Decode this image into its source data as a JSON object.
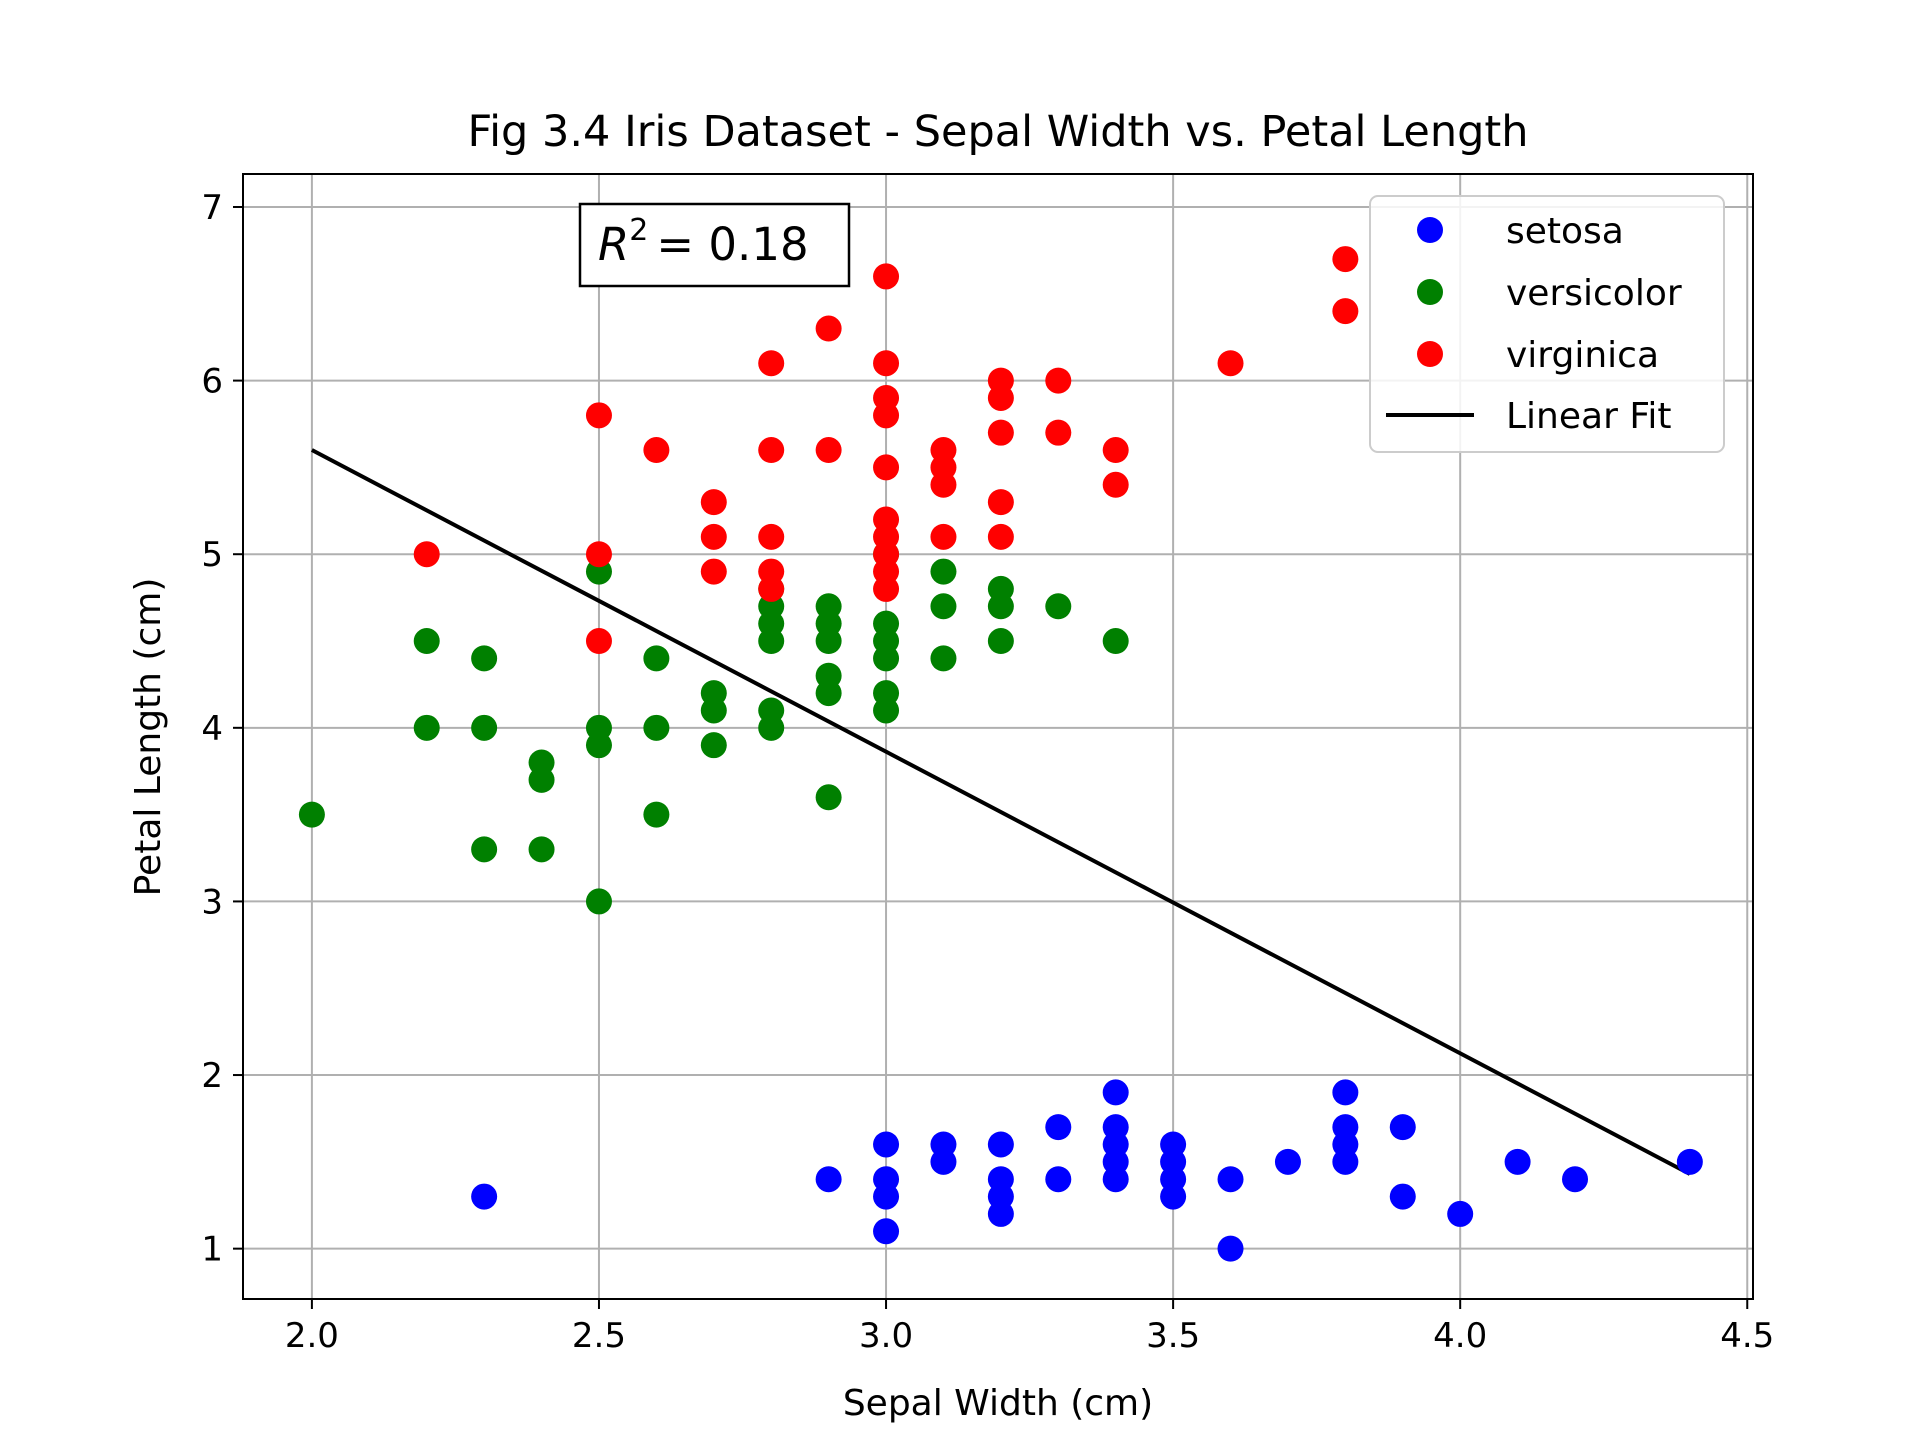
{
  "colors": {
    "setosa": "#0000ff",
    "versicolor": "#008000",
    "virginica": "#ff0000",
    "fit": "#000000",
    "grid": "#b0b0b0",
    "axes": "#000000"
  },
  "chart_data": {
    "type": "scatter",
    "title": "Fig 3.4 Iris Dataset - Sepal Width vs. Petal Length",
    "xlabel": "Sepal Width (cm)",
    "ylabel": "Petal Length (cm)",
    "xlim": [
      1.88,
      4.51
    ],
    "ylim": [
      0.71,
      7.19
    ],
    "xticks": [
      2.0,
      2.5,
      3.0,
      3.5,
      4.0,
      4.5
    ],
    "xtick_labels": [
      "2.0",
      "2.5",
      "3.0",
      "3.5",
      "4.0",
      "4.5"
    ],
    "yticks": [
      1,
      2,
      3,
      4,
      5,
      6,
      7
    ],
    "ytick_labels": [
      "1",
      "2",
      "3",
      "4",
      "5",
      "6",
      "7"
    ],
    "grid": true,
    "legend_position": "top-right",
    "annotation": {
      "lhs": "R",
      "exp": "2",
      "rhs": "= 0.18"
    },
    "series": [
      {
        "name": "setosa",
        "points": [
          [
            2.3,
            1.3
          ],
          [
            2.9,
            1.4
          ],
          [
            3.0,
            1.4
          ],
          [
            3.0,
            1.1
          ],
          [
            3.0,
            1.6
          ],
          [
            3.0,
            1.3
          ],
          [
            3.1,
            1.5
          ],
          [
            3.1,
            1.6
          ],
          [
            3.2,
            1.3
          ],
          [
            3.2,
            1.2
          ],
          [
            3.2,
            1.6
          ],
          [
            3.2,
            1.4
          ],
          [
            3.3,
            1.4
          ],
          [
            3.3,
            1.7
          ],
          [
            3.4,
            1.4
          ],
          [
            3.4,
            1.5
          ],
          [
            3.4,
            1.6
          ],
          [
            3.4,
            1.7
          ],
          [
            3.4,
            1.9
          ],
          [
            3.5,
            1.3
          ],
          [
            3.5,
            1.4
          ],
          [
            3.5,
            1.5
          ],
          [
            3.5,
            1.6
          ],
          [
            3.6,
            1.0
          ],
          [
            3.6,
            1.4
          ],
          [
            3.7,
            1.5
          ],
          [
            3.8,
            1.5
          ],
          [
            3.8,
            1.6
          ],
          [
            3.8,
            1.7
          ],
          [
            3.8,
            1.9
          ],
          [
            3.9,
            1.3
          ],
          [
            3.9,
            1.7
          ],
          [
            4.0,
            1.2
          ],
          [
            4.1,
            1.5
          ],
          [
            4.2,
            1.4
          ],
          [
            4.4,
            1.5
          ]
        ]
      },
      {
        "name": "versicolor",
        "points": [
          [
            2.0,
            3.5
          ],
          [
            2.2,
            4.0
          ],
          [
            2.2,
            4.5
          ],
          [
            2.3,
            3.3
          ],
          [
            2.3,
            4.0
          ],
          [
            2.3,
            4.4
          ],
          [
            2.4,
            3.3
          ],
          [
            2.4,
            3.7
          ],
          [
            2.4,
            3.8
          ],
          [
            2.5,
            3.0
          ],
          [
            2.5,
            3.9
          ],
          [
            2.5,
            4.0
          ],
          [
            2.5,
            4.9
          ],
          [
            2.6,
            3.5
          ],
          [
            2.6,
            4.0
          ],
          [
            2.6,
            4.4
          ],
          [
            2.7,
            3.9
          ],
          [
            2.7,
            4.1
          ],
          [
            2.7,
            4.2
          ],
          [
            2.8,
            4.0
          ],
          [
            2.8,
            4.1
          ],
          [
            2.8,
            4.5
          ],
          [
            2.8,
            4.6
          ],
          [
            2.8,
            4.7
          ],
          [
            2.8,
            4.8
          ],
          [
            2.9,
            3.6
          ],
          [
            2.9,
            4.2
          ],
          [
            2.9,
            4.3
          ],
          [
            2.9,
            4.5
          ],
          [
            2.9,
            4.6
          ],
          [
            2.9,
            4.7
          ],
          [
            3.0,
            4.1
          ],
          [
            3.0,
            4.2
          ],
          [
            3.0,
            4.4
          ],
          [
            3.0,
            4.5
          ],
          [
            3.0,
            4.6
          ],
          [
            3.0,
            5.0
          ],
          [
            3.1,
            4.4
          ],
          [
            3.1,
            4.7
          ],
          [
            3.1,
            4.9
          ],
          [
            3.2,
            4.5
          ],
          [
            3.2,
            4.7
          ],
          [
            3.2,
            4.8
          ],
          [
            3.3,
            4.7
          ],
          [
            3.4,
            4.5
          ]
        ]
      },
      {
        "name": "virginica",
        "points": [
          [
            2.2,
            5.0
          ],
          [
            2.5,
            4.5
          ],
          [
            2.5,
            5.0
          ],
          [
            2.5,
            5.8
          ],
          [
            2.6,
            5.6
          ],
          [
            2.7,
            4.9
          ],
          [
            2.7,
            5.1
          ],
          [
            2.7,
            5.3
          ],
          [
            2.8,
            4.8
          ],
          [
            2.8,
            4.9
          ],
          [
            2.8,
            5.1
          ],
          [
            2.8,
            5.6
          ],
          [
            2.8,
            6.1
          ],
          [
            2.9,
            5.6
          ],
          [
            2.9,
            6.3
          ],
          [
            3.0,
            4.8
          ],
          [
            3.0,
            4.9
          ],
          [
            3.0,
            5.0
          ],
          [
            3.0,
            5.1
          ],
          [
            3.0,
            5.2
          ],
          [
            3.0,
            5.5
          ],
          [
            3.0,
            5.8
          ],
          [
            3.0,
            5.9
          ],
          [
            3.0,
            6.1
          ],
          [
            3.0,
            6.6
          ],
          [
            3.1,
            5.1
          ],
          [
            3.1,
            5.4
          ],
          [
            3.1,
            5.5
          ],
          [
            3.1,
            5.6
          ],
          [
            3.2,
            5.1
          ],
          [
            3.2,
            5.3
          ],
          [
            3.2,
            5.7
          ],
          [
            3.2,
            5.9
          ],
          [
            3.2,
            6.0
          ],
          [
            3.3,
            5.7
          ],
          [
            3.3,
            6.0
          ],
          [
            3.4,
            5.4
          ],
          [
            3.4,
            5.6
          ],
          [
            3.6,
            6.1
          ],
          [
            3.8,
            6.4
          ],
          [
            3.8,
            6.7
          ]
        ]
      }
    ],
    "fit_line": {
      "name": "Linear Fit",
      "x": [
        2.0,
        4.4
      ],
      "y": [
        5.6,
        1.43
      ]
    }
  }
}
